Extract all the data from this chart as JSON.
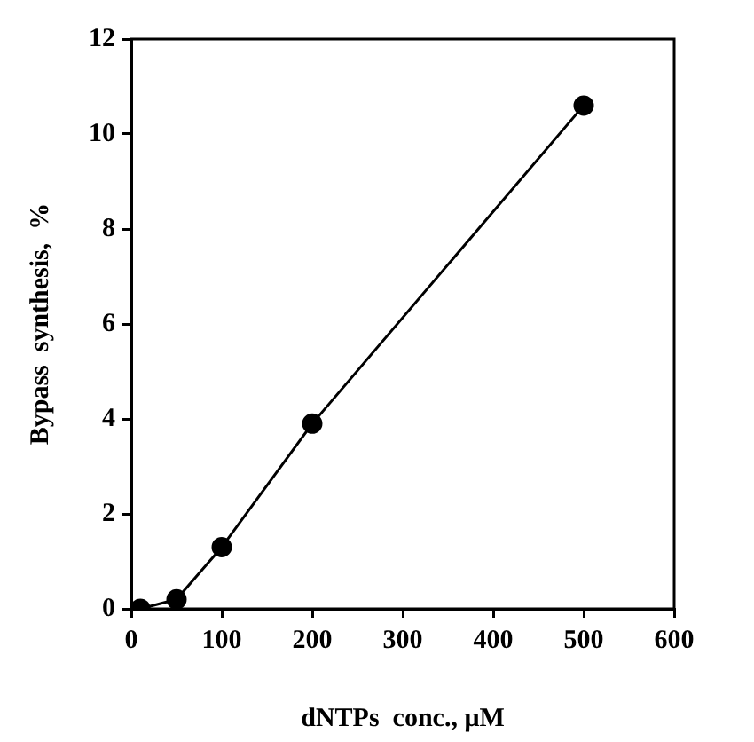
{
  "chart_data": {
    "type": "line",
    "xlabel": "dNTPs  conc., μM",
    "ylabel": "Bypass  synthesis,  %",
    "x": [
      10,
      50,
      100,
      200,
      500
    ],
    "values": [
      0,
      0.2,
      1.3,
      3.9,
      10.6
    ],
    "color": "#000000",
    "xlim": [
      0,
      600
    ],
    "xticks": [
      0,
      100,
      200,
      300,
      400,
      500,
      600
    ],
    "ylim": [
      0,
      12
    ],
    "yticks": [
      0,
      2,
      4,
      6,
      8,
      10,
      12
    ],
    "grid": false,
    "marker": "circle",
    "line_style": "solid"
  }
}
